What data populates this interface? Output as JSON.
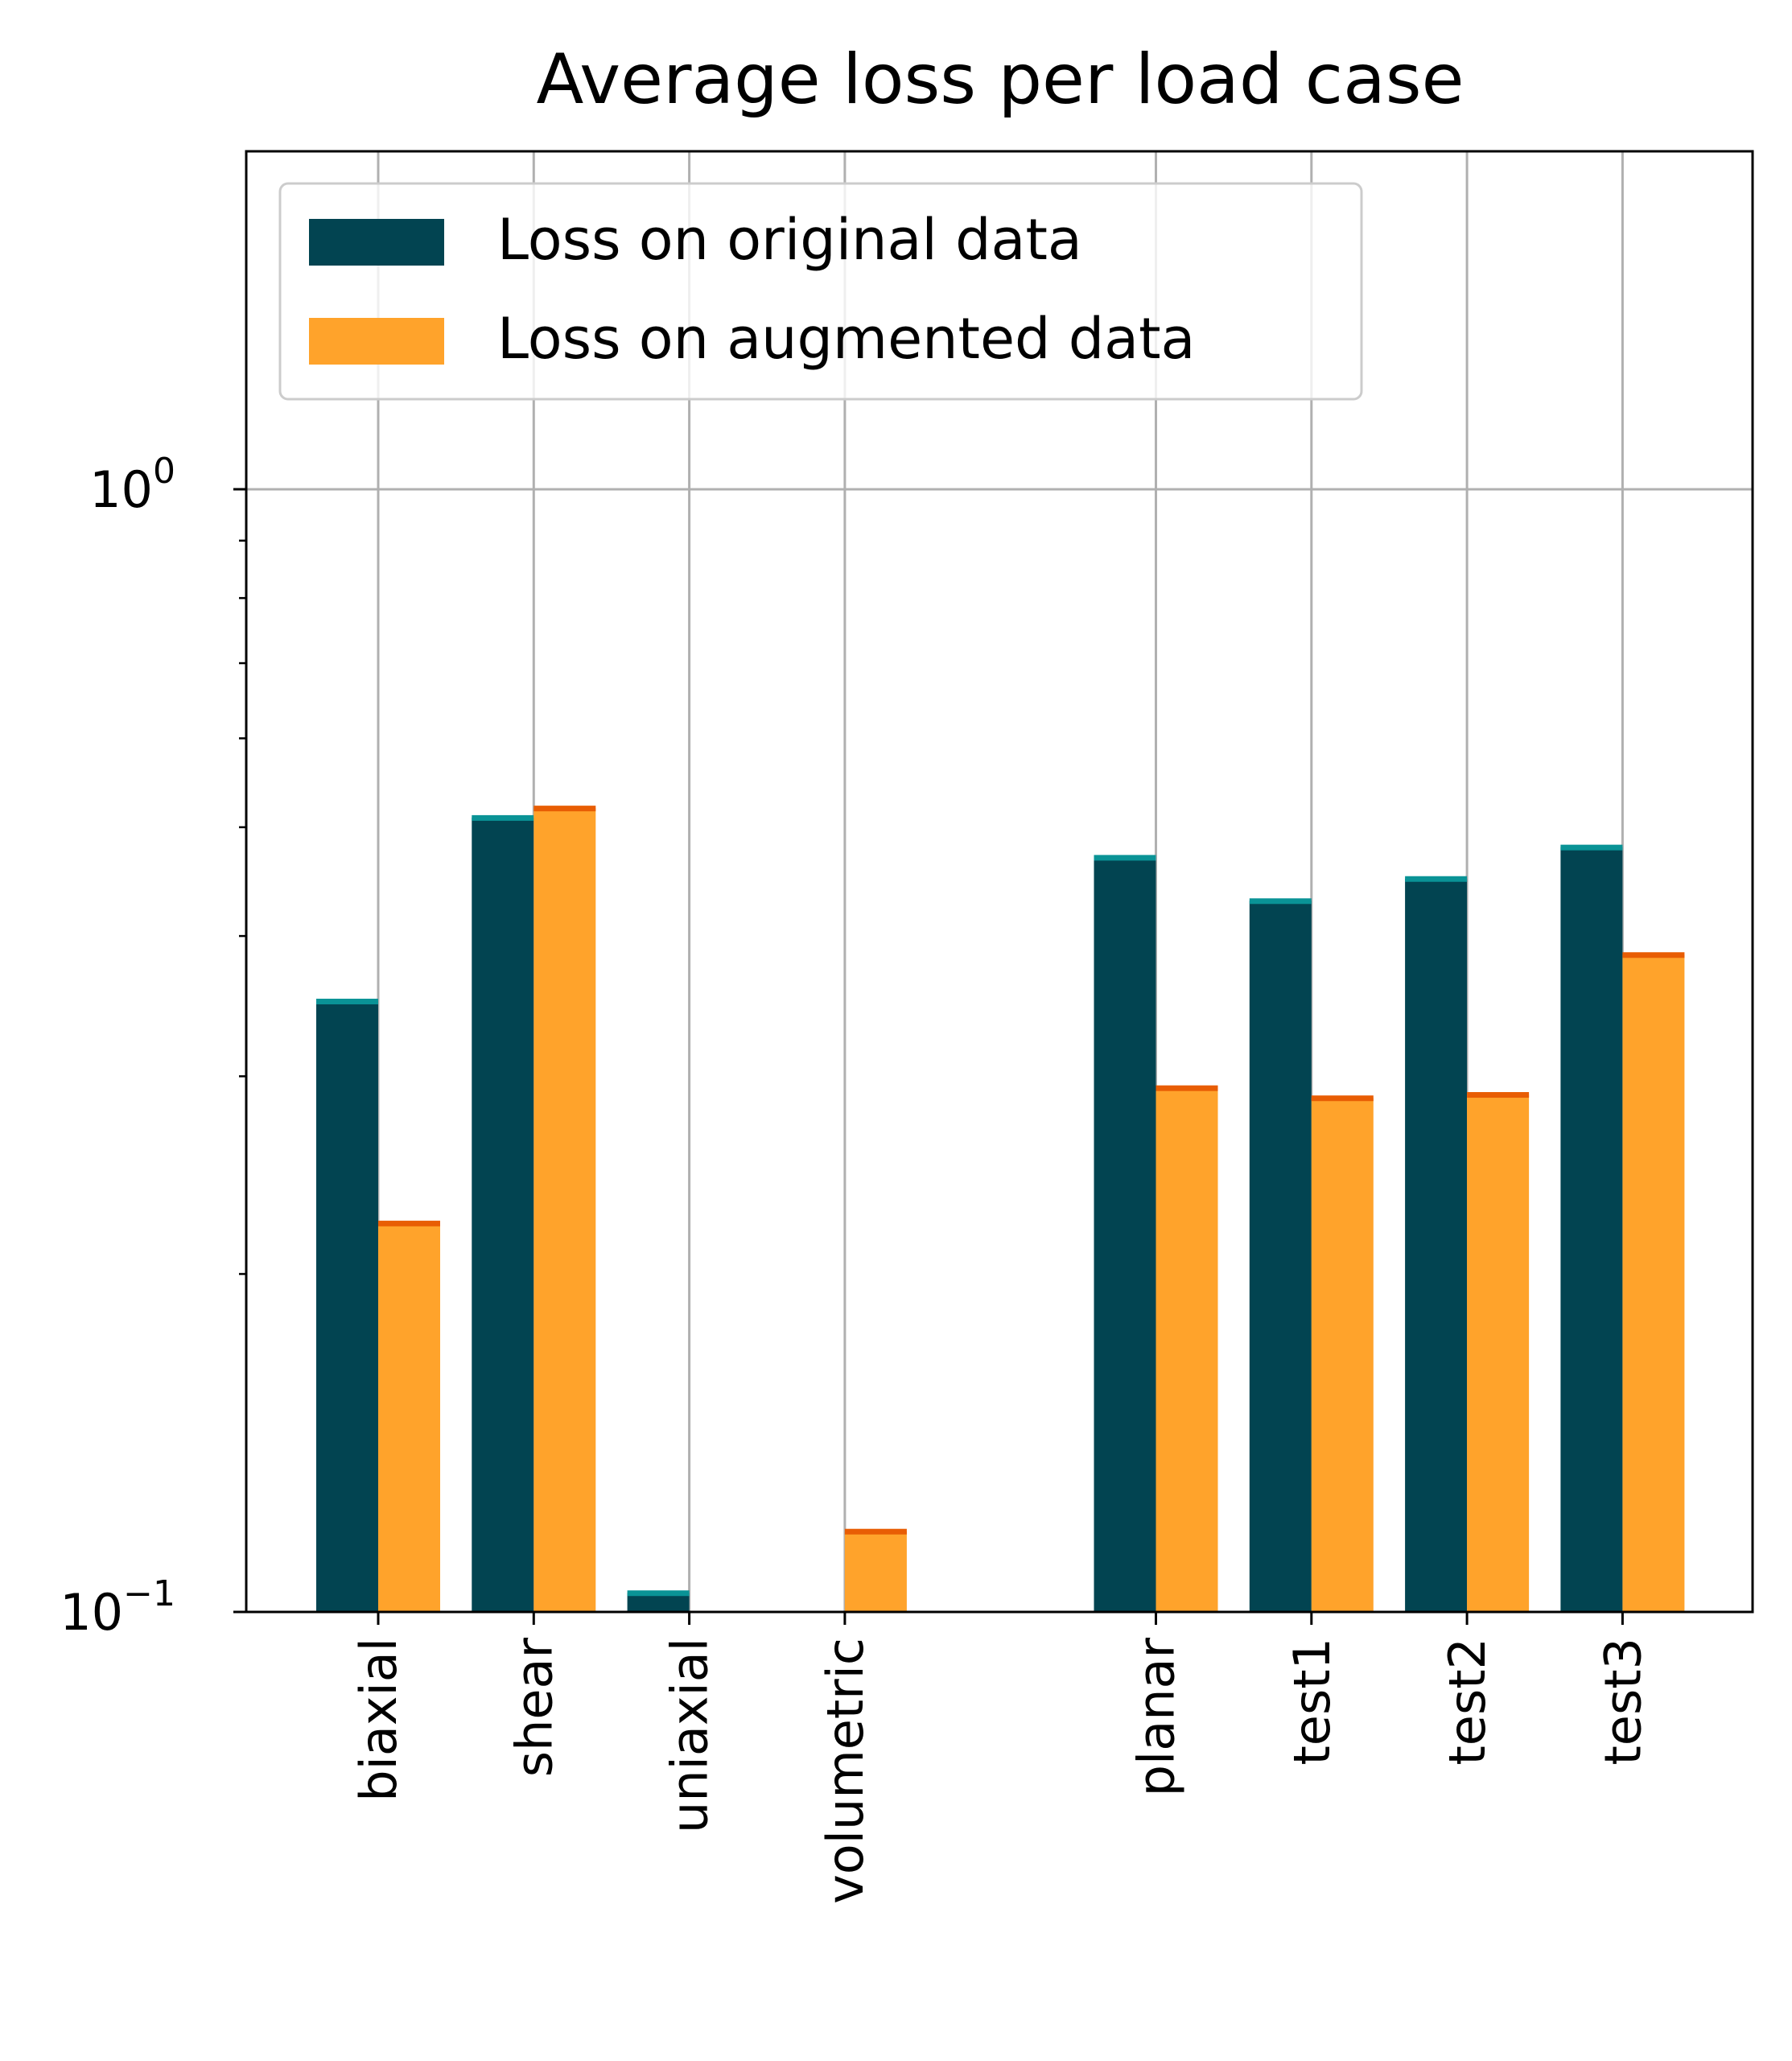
{
  "chart_data": {
    "type": "bar",
    "title": "Average loss per load case",
    "xlabel": "",
    "ylabel": "",
    "yscale": "log",
    "ylim": [
      0.1,
      2.0
    ],
    "yticks": [
      {
        "value": 1.0,
        "label": "10^0",
        "base": "10",
        "exp": "0"
      },
      {
        "value": 0.1,
        "label": "10^-1",
        "base": "10",
        "exp": "−1"
      }
    ],
    "grid": true,
    "legend_position": "upper-left",
    "categories": [
      "biaxial",
      "shear",
      "uniaxial",
      "volumetric",
      "planar",
      "test1",
      "test2",
      "test3"
    ],
    "category_slots": [
      0,
      1,
      2,
      3,
      5,
      6,
      7,
      8
    ],
    "series": [
      {
        "name": "Loss on original data",
        "color": "#024451",
        "cap_color": "#0a9396",
        "values": [
          0.35,
          0.51,
          0.104,
          null,
          0.47,
          0.43,
          0.45,
          0.48
        ]
      },
      {
        "name": "Loss on augmented data",
        "color": "#ffa32b",
        "cap_color": "#e85d04",
        "values": [
          0.222,
          0.52,
          null,
          0.118,
          0.293,
          0.287,
          0.289,
          0.385
        ]
      }
    ]
  }
}
